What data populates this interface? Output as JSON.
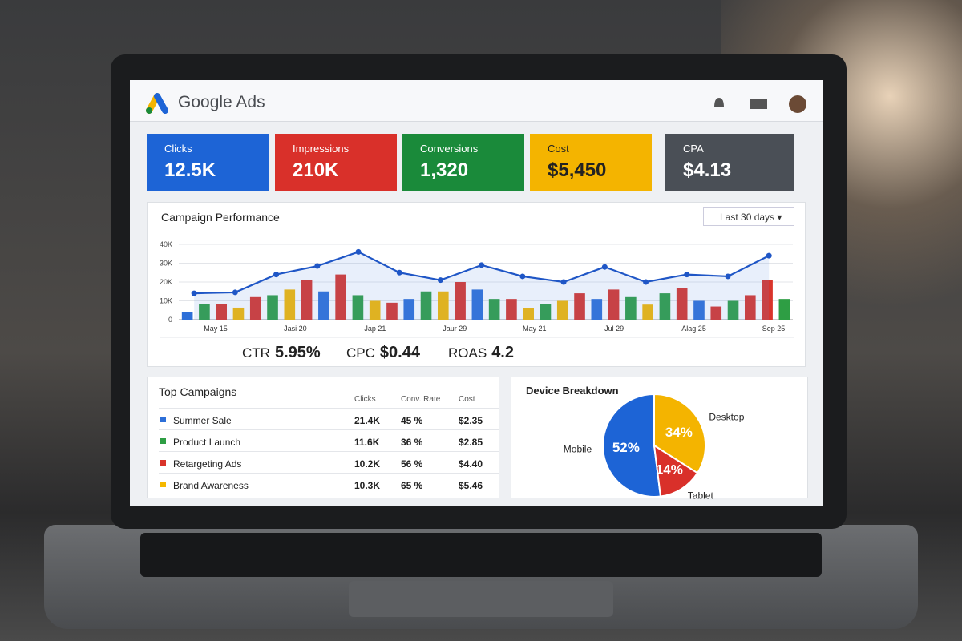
{
  "header": {
    "title": "Google Ads"
  },
  "kpis": [
    {
      "label": "Clicks",
      "value": "12.5K",
      "color": "#1d64d6"
    },
    {
      "label": "Impressions",
      "value": "210K",
      "color": "#d9302a"
    },
    {
      "label": "Conversions",
      "value": "1,320",
      "color": "#1a8a3a"
    },
    {
      "label": "Cost",
      "value": "$5,450",
      "color": "#f4b400"
    },
    {
      "label": "CPA",
      "value": "$4.13",
      "color": "#4a4f56"
    }
  ],
  "campaign_performance": {
    "title": "Campaign Performance",
    "range": "Last 30 days",
    "chart": {
      "type": "bar-line",
      "bars": {
        "values": [
          4000,
          8500,
          8500,
          6400,
          12000,
          13000,
          16000,
          21000,
          15000,
          24000,
          13000,
          10000,
          9000,
          11000,
          15000,
          15000,
          20000,
          16000,
          11000,
          11000,
          6000,
          8500,
          10000,
          14000,
          11000,
          16000,
          12000,
          8000,
          14000,
          17000,
          10000,
          7000,
          10000,
          13000,
          21000,
          11000
        ],
        "colors": [
          "#2d6fd8",
          "#2e9e44",
          "#d9342b",
          "#f5b800",
          "#d9342b",
          "#2e9e44",
          "#f5b800",
          "#d9342b",
          "#2d6fd8",
          "#d9342b",
          "#2e9e44",
          "#f5b800",
          "#d9342b",
          "#2d6fd8",
          "#2e9e44",
          "#f5b800",
          "#d9342b",
          "#2d6fd8",
          "#2e9e44",
          "#d9342b",
          "#f5b800",
          "#2e9e44",
          "#f5b800",
          "#d9342b",
          "#2d6fd8",
          "#d9342b",
          "#2e9e44",
          "#f5b800",
          "#2e9e44",
          "#d9342b",
          "#2d6fd8",
          "#d9342b",
          "#2e9e44",
          "#d9342b",
          "#d9342b",
          "#2e9e44"
        ]
      },
      "line": {
        "values": [
          14000,
          14500,
          24000,
          28500,
          36000,
          25000,
          21000,
          29000,
          23000,
          20000,
          28000,
          20000,
          24000,
          23000,
          34000
        ],
        "color": "#1f56c6"
      },
      "x_labels": [
        "May 15",
        "Jasi 20",
        "Jap 21",
        "Jaur 29",
        "May 21",
        "Jul 29",
        "Alag 25",
        "Sep 25"
      ],
      "ylim": [
        0,
        40000
      ],
      "yticks": [
        0,
        {
          "value": 10000,
          "label": "10K"
        },
        {
          "value": 20000,
          "label": "20K"
        },
        {
          "value": 30000,
          "label": "30K"
        },
        {
          "value": 40000,
          "label": "40K"
        }
      ],
      "grid": true
    },
    "metrics": [
      {
        "label": "CTR",
        "value": "5.95%"
      },
      {
        "label": "CPC",
        "value": "$0.44"
      },
      {
        "label": "ROAS",
        "value": "4.2"
      }
    ]
  },
  "top_campaigns": {
    "title": "Top Campaigns",
    "columns": [
      "Clicks",
      "Conv. Rate",
      "Cost"
    ],
    "rows": [
      {
        "name": "Summer Sale",
        "color": "#2d6fd8",
        "cells": [
          "21.4K",
          "45 %",
          "$2.35"
        ]
      },
      {
        "name": "Product Launch",
        "color": "#2e9e44",
        "cells": [
          "11.6K",
          "36 %",
          "$2.85"
        ]
      },
      {
        "name": "Retargeting Ads",
        "color": "#d9342b",
        "cells": [
          "10.2K",
          "56 %",
          "$4.40"
        ]
      },
      {
        "name": "Brand Awareness",
        "color": "#f5b800",
        "cells": [
          "10.3K",
          "65 %",
          "$5.46"
        ]
      }
    ]
  },
  "device_breakdown": {
    "title": "Device Breakdown",
    "type": "pie",
    "labels": [
      "Mobile",
      "Desktop",
      "Tablet"
    ],
    "values": [
      52,
      34,
      14
    ],
    "value_labels": [
      "52%",
      "34%",
      "14%"
    ],
    "colors": [
      "#1d64d6",
      "#f4b400",
      "#d9302a"
    ]
  }
}
